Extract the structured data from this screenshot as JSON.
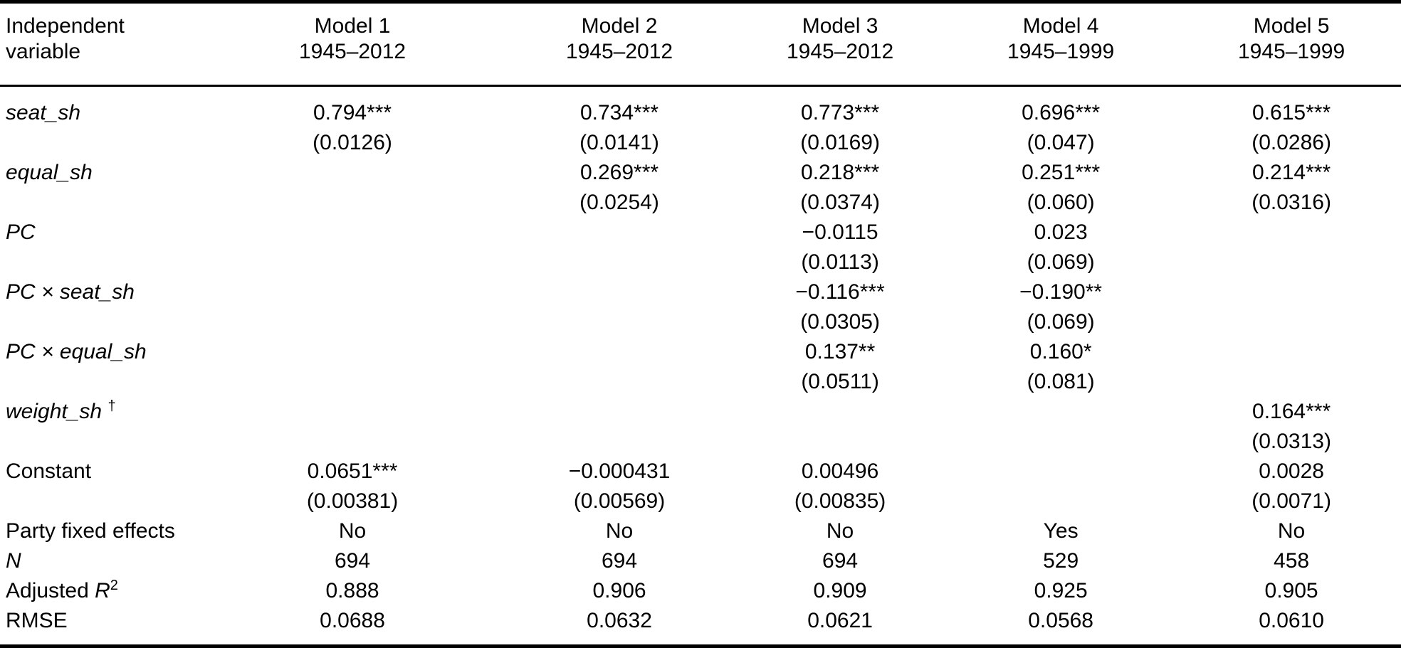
{
  "table": {
    "header_label_line1": "Independent",
    "header_label_line2": "variable",
    "models": [
      {
        "name": "Model 1",
        "years": "1945–2012"
      },
      {
        "name": "Model 2",
        "years": "1945–2012"
      },
      {
        "name": "Model 3",
        "years": "1945–2012"
      },
      {
        "name": "Model 4",
        "years": "1945–1999"
      },
      {
        "name": "Model 5",
        "years": "1945–1999"
      }
    ],
    "variables": [
      {
        "label_parts": [
          {
            "t": "seat_sh",
            "i": true
          }
        ],
        "coef": [
          "0.794***",
          "0.734***",
          "0.773***",
          "0.696***",
          "0.615***"
        ],
        "se": [
          "(0.0126)",
          "(0.0141)",
          "(0.0169)",
          "(0.047)",
          "(0.0286)"
        ]
      },
      {
        "label_parts": [
          {
            "t": "equal_sh",
            "i": true
          }
        ],
        "coef": [
          "",
          "0.269***",
          "0.218***",
          "0.251***",
          "0.214***"
        ],
        "se": [
          "",
          "(0.0254)",
          "(0.0374)",
          "(0.060)",
          "(0.0316)"
        ]
      },
      {
        "label_parts": [
          {
            "t": "PC",
            "i": true
          }
        ],
        "coef": [
          "",
          "",
          "−0.0115",
          "0.023",
          ""
        ],
        "se": [
          "",
          "",
          "(0.0113)",
          "(0.069)",
          ""
        ]
      },
      {
        "label_parts": [
          {
            "t": "PC × seat_sh",
            "i": true
          }
        ],
        "coef": [
          "",
          "",
          "−0.116***",
          "−0.190**",
          ""
        ],
        "se": [
          "",
          "",
          "(0.0305)",
          "(0.069)",
          ""
        ]
      },
      {
        "label_parts": [
          {
            "t": "PC × equal_sh",
            "i": true
          }
        ],
        "coef": [
          "",
          "",
          "0.137**",
          "0.160*",
          ""
        ],
        "se": [
          "",
          "",
          "(0.0511)",
          "(0.081)",
          ""
        ]
      },
      {
        "label_parts": [
          {
            "t": "weight_sh",
            "i": true
          },
          {
            "t": " "
          },
          {
            "t": "†",
            "sup": true
          }
        ],
        "coef": [
          "",
          "",
          "",
          "",
          "0.164***"
        ],
        "se": [
          "",
          "",
          "",
          "",
          "(0.0313)"
        ]
      },
      {
        "label_parts": [
          {
            "t": "Constant"
          }
        ],
        "coef": [
          "0.0651***",
          "−0.000431",
          "0.00496",
          "",
          "0.0028"
        ],
        "se": [
          "(0.00381)",
          "(0.00569)",
          "(0.00835)",
          "",
          "(0.0071)"
        ]
      }
    ],
    "stats": [
      {
        "label_parts": [
          {
            "t": "Party fixed effects"
          }
        ],
        "values": [
          "No",
          "No",
          "No",
          "Yes",
          "No"
        ]
      },
      {
        "label_parts": [
          {
            "t": "N",
            "i": true
          }
        ],
        "values": [
          "694",
          "694",
          "694",
          "529",
          "458"
        ]
      },
      {
        "label_parts": [
          {
            "t": "Adjusted "
          },
          {
            "t": "R",
            "i": true
          },
          {
            "t": "2",
            "sup": true
          }
        ],
        "values": [
          "0.888",
          "0.906",
          "0.909",
          "0.925",
          "0.905"
        ]
      },
      {
        "label_parts": [
          {
            "t": "RMSE"
          }
        ],
        "values": [
          "0.0688",
          "0.0632",
          "0.0621",
          "0.0568",
          "0.0610"
        ]
      }
    ]
  }
}
